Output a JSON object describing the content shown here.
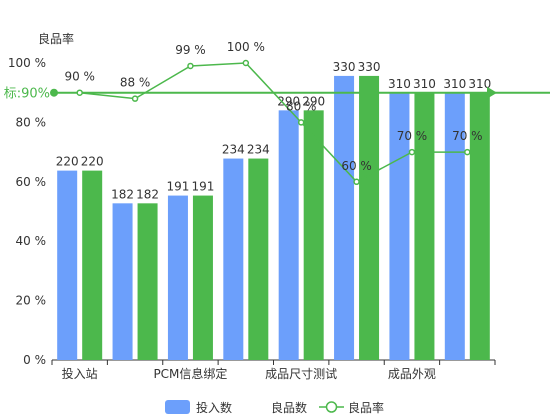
{
  "chart_data": {
    "type": "bar",
    "categories": [
      "投入站",
      "",
      "PCM信息绑定",
      "",
      "成品尺寸测试",
      "",
      "成品外观",
      ""
    ],
    "series": [
      {
        "name": "投入数",
        "type": "bar",
        "axis": "count",
        "color": "#6c9ffb",
        "values": [
          220,
          182,
          191,
          234,
          290,
          330,
          310,
          310
        ]
      },
      {
        "name": "良品数",
        "type": "bar",
        "axis": "count",
        "color": "#4cb84c",
        "values": [
          220,
          182,
          191,
          234,
          290,
          330,
          310,
          310
        ]
      },
      {
        "name": "良品率",
        "type": "line",
        "axis": "percent",
        "color": "#4cb84c",
        "values": [
          90,
          88,
          99,
          100,
          80,
          60,
          70,
          70
        ]
      }
    ],
    "ylabel": "良品率",
    "ylim": [
      0,
      100
    ],
    "count_axis_max": 345,
    "yticks": [
      "0 %",
      "20 %",
      "40 %",
      "60 %",
      "80 %",
      "100 %"
    ],
    "line_labels": [
      "90 %",
      "88 %",
      "99 %",
      "100 %",
      "80 %",
      "60 %",
      "70 %",
      "70 %"
    ],
    "target": {
      "label": "标:90%",
      "value": 90
    },
    "grid": false,
    "legend_position": "bottom"
  },
  "legend": {
    "bar1": "投入数",
    "bar2": "良品数",
    "line": "良品率"
  }
}
